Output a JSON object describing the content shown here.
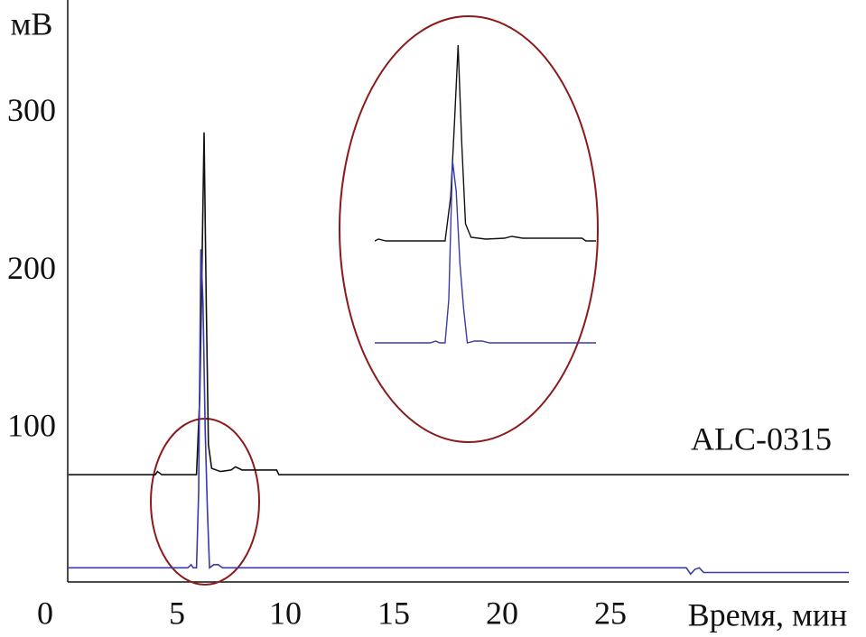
{
  "chart_data": {
    "type": "line",
    "y_label": "мВ",
    "x_label": "Время, мин",
    "annotation": "ALC-0315",
    "xlim": [
      0,
      36
    ],
    "xticks": [
      0,
      5,
      10,
      15,
      20,
      25
    ],
    "ylim": [
      3,
      372
    ],
    "yticks": [
      100,
      200,
      300
    ],
    "series": [
      {
        "color": "#111111",
        "x": [
          0,
          4.0,
          4.1,
          4.3,
          5.9,
          6.05,
          6.15,
          6.25,
          6.35,
          6.45,
          6.6,
          7.0,
          7.5,
          7.7,
          8.0,
          9.0,
          9.6,
          9.7,
          36
        ],
        "values": [
          71,
          71,
          73,
          71,
          71,
          120,
          200,
          288,
          180,
          90,
          75,
          73,
          74,
          76,
          74,
          74,
          74,
          71,
          71
        ]
      },
      {
        "color": "#3a3aa8",
        "x": [
          0,
          5.5,
          5.65,
          5.75,
          5.9,
          6.0,
          6.1,
          6.2,
          6.3,
          6.4,
          6.5,
          6.7,
          6.9,
          7.1,
          28.5,
          28.7,
          28.9,
          29.1,
          29.3,
          36
        ],
        "values": [
          12,
          12,
          14,
          12,
          12,
          60,
          214,
          180,
          100,
          50,
          12,
          14,
          14,
          12,
          12,
          8,
          11,
          12,
          9,
          9
        ]
      }
    ]
  }
}
